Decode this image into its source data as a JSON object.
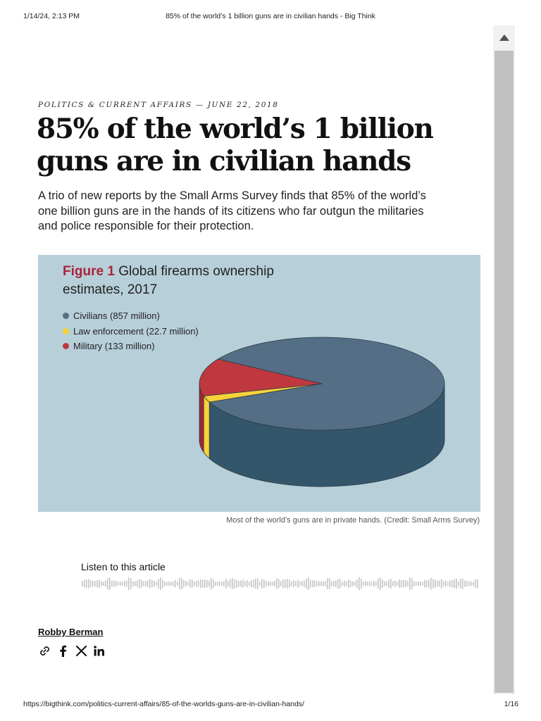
{
  "print_header": {
    "datetime": "1/14/24, 2:13 PM",
    "page_title": "85% of the world’s 1 billion guns are in civilian hands - Big Think"
  },
  "print_footer": {
    "url": "https://bigthink.com/politics-current-affairs/85-of-the-worlds-guns-are-in-civilian-hands/",
    "page_number": "1/16"
  },
  "article": {
    "category_line": "POLITICS & CURRENT AFFAIRS — JUNE 22, 2018",
    "headline": "85% of the world’s 1 billion guns are in civilian hands",
    "dek": "A trio of new reports by the Small Arms Survey finds that 85% of the world’s one billion guns are in the hands of its citizens who far outgun the militaries and police responsible for their protection.",
    "caption": "Most of the world’s guns are in private hands. (Credit: Small Arms Survey)",
    "listen_label": "Listen to this article",
    "author": "Robby Berman"
  },
  "share_icons": [
    "link-icon",
    "facebook-icon",
    "x-icon",
    "linkedin-icon"
  ],
  "colors": {
    "figure_background": "#b7cfd9",
    "figure_number": "#a8243a",
    "scrollbar_thumb": "#c1c1c1"
  },
  "chart_data": {
    "type": "pie",
    "style": "3d",
    "title_prefix": "Figure 1",
    "title": "Global firearms ownership estimates, 2017",
    "legend_position": "top-left",
    "slices": [
      {
        "label": "Civilians (857 million)",
        "value": 857,
        "color": "#546e85",
        "side_color": "#34566b"
      },
      {
        "label": "Law enforcement (22.7 million)",
        "value": 22.7,
        "color": "#f7d23a",
        "side_color": "#f7d23a"
      },
      {
        "label": "Military (133 million)",
        "value": 133,
        "color": "#c0383f",
        "side_color": "#a32634"
      }
    ]
  }
}
